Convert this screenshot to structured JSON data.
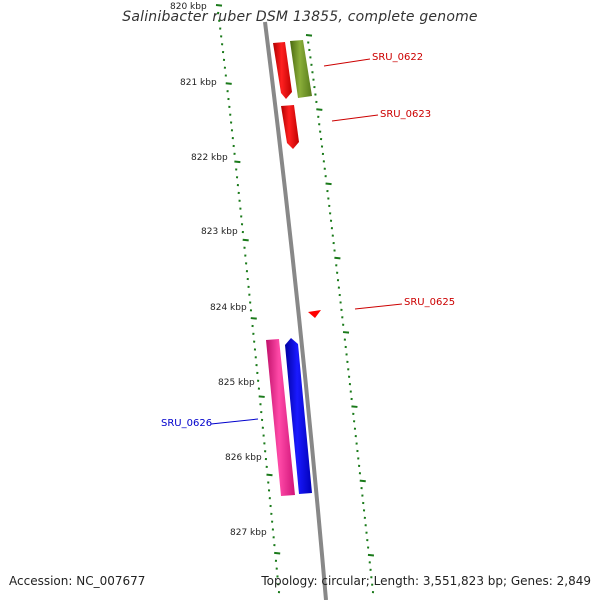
{
  "title": "Salinibacter ruber DSM 13855, complete genome",
  "footer": {
    "accession": "Accession: NC_007677",
    "topology": "Topology: circular; Length: 3,551,823 bp; Genes: 2,849"
  },
  "colors": {
    "backbone": "#888888",
    "tick": "#1a7a1a",
    "red_gene": "#ff0000",
    "olive_gene": "#6b8e23",
    "magenta_gene": "#ff1493",
    "blue_gene": "#0000ff",
    "red_label": "#cc0000",
    "blue_label": "#0000cc"
  },
  "ruler": {
    "unit": "kbp",
    "labels": [
      "820 kbp",
      "821 kbp",
      "822 kbp",
      "823 kbp",
      "824 kbp",
      "825 kbp",
      "826 kbp",
      "827 kbp"
    ]
  },
  "genes": [
    {
      "name": "SRU_0622",
      "label": "SRU_0622",
      "strand": "reverse",
      "color": "red",
      "start_kbp": 820.15,
      "end_kbp": 820.87
    },
    {
      "name": "SRU_0622b",
      "label": "",
      "strand": "reverse",
      "color": "olive",
      "start_kbp": 820.15,
      "end_kbp": 820.87
    },
    {
      "name": "SRU_0623",
      "label": "SRU_0623",
      "strand": "reverse",
      "color": "red",
      "start_kbp": 821.1,
      "end_kbp": 821.65
    },
    {
      "name": "SRU_0625",
      "label": "SRU_0625",
      "strand": "reverse",
      "color": "red",
      "start_kbp": 824.05,
      "end_kbp": 824.15
    },
    {
      "name": "SRU_0626",
      "label": "SRU_0626",
      "strand": "forward",
      "color": "magenta",
      "start_kbp": 824.45,
      "end_kbp": 826.5
    },
    {
      "name": "SRU_0626b",
      "label": "",
      "strand": "forward",
      "color": "blue",
      "start_kbp": 824.45,
      "end_kbp": 826.5
    }
  ]
}
